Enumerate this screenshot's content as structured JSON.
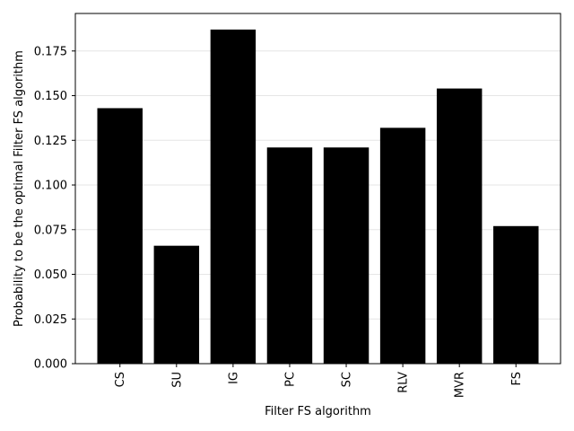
{
  "chart_data": {
    "type": "bar",
    "title": "",
    "xlabel": "Filter FS algorithm",
    "ylabel": "Probability to be the optimal Filter FS algorithm",
    "categories": [
      "CS",
      "SU",
      "IG",
      "PC",
      "SC",
      "RLV",
      "MVR",
      "FS"
    ],
    "values": [
      0.143,
      0.066,
      0.187,
      0.121,
      0.121,
      0.132,
      0.154,
      0.077
    ],
    "ylim": [
      0,
      0.196
    ],
    "yticks": [
      0.0,
      0.025,
      0.05,
      0.075,
      0.1,
      0.125,
      0.15,
      0.175
    ],
    "ytick_labels": [
      "0.000",
      "0.025",
      "0.050",
      "0.075",
      "0.100",
      "0.125",
      "0.150",
      "0.175"
    ],
    "grid": "y",
    "bar_color": "#000000",
    "grid_color": "#e6e6e6"
  }
}
